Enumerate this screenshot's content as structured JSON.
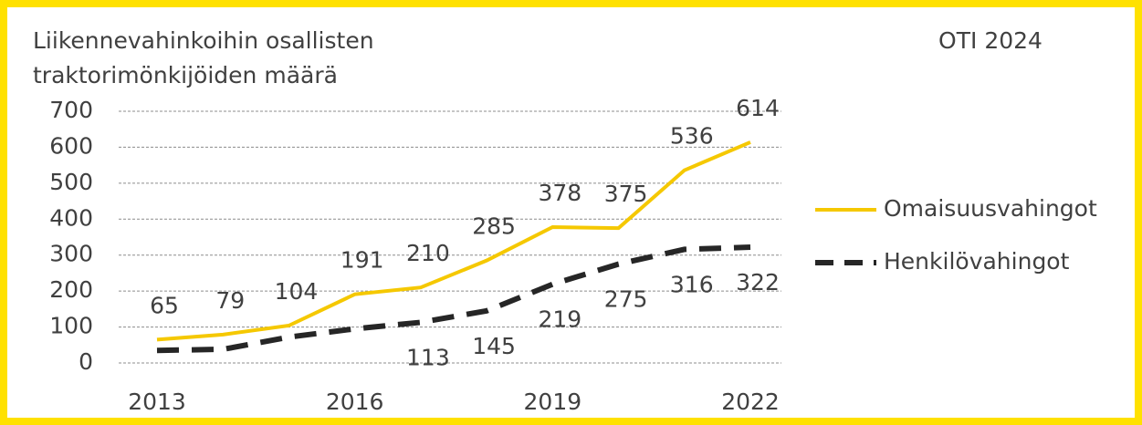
{
  "chart_data": {
    "type": "line",
    "title": [
      "Liikennevahinkoihin osallisten",
      "traktorimönkijöiden määrä"
    ],
    "annotation": "OTI 2024",
    "x": [
      2013,
      2014,
      2015,
      2016,
      2017,
      2018,
      2019,
      2020,
      2021,
      2022
    ],
    "xlim": [
      2013,
      2022
    ],
    "xticks": [
      2013,
      2016,
      2019,
      2022
    ],
    "ylim": [
      0,
      700
    ],
    "yticks": [
      0,
      100,
      200,
      300,
      400,
      500,
      600,
      700
    ],
    "grid": true,
    "legend": "right",
    "series": [
      {
        "name": "Omaisuusvahingot",
        "color": "#f5c800",
        "dash": "solid",
        "values": [
          65,
          79,
          104,
          191,
          210,
          285,
          378,
          375,
          536,
          614
        ]
      },
      {
        "name": "Henkilövahingot",
        "color": "#262626",
        "dash": "dashed",
        "values": [
          35,
          38,
          72,
          95,
          113,
          145,
          219,
          275,
          316,
          322
        ],
        "value_labels": [
          null,
          null,
          null,
          null,
          "113",
          "145",
          "219",
          "275",
          "316",
          "322"
        ]
      }
    ]
  }
}
